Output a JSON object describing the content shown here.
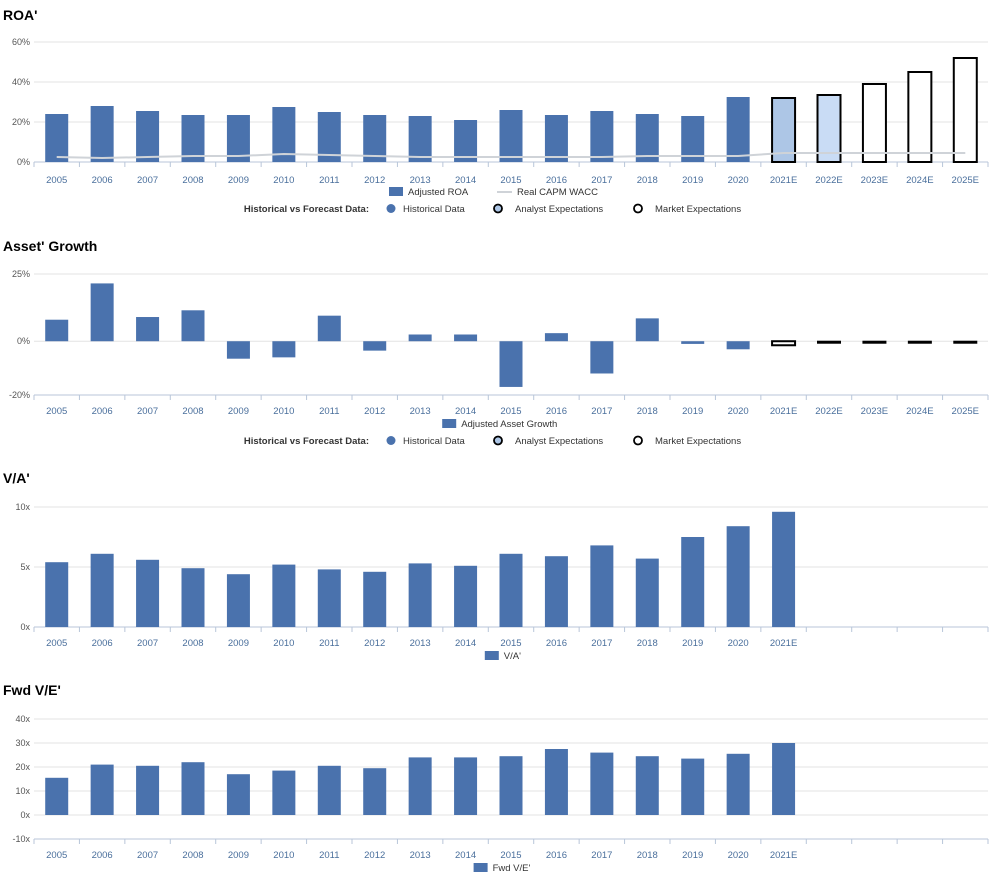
{
  "colors": {
    "historical": "#4a72ad",
    "analyst": "#adc6e6",
    "analyst_light": "#c9dcf5",
    "market_fill": "#ffffff",
    "market_stroke": "#000000",
    "wacc_line": "#cfd3d8",
    "grid": "#e3e3e3",
    "axis": "#b8c6d9"
  },
  "chart_data": [
    {
      "type": "bar",
      "title": "ROA'",
      "categories": [
        "2005",
        "2006",
        "2007",
        "2008",
        "2009",
        "2010",
        "2011",
        "2012",
        "2013",
        "2014",
        "2015",
        "2016",
        "2017",
        "2018",
        "2019",
        "2020",
        "2021E",
        "2022E",
        "2023E",
        "2024E",
        "2025E"
      ],
      "series": [
        {
          "name": "Adjusted ROA",
          "values": [
            24,
            28,
            25.5,
            23.5,
            23.5,
            27.5,
            25,
            23.5,
            23,
            21,
            26,
            23.5,
            25.5,
            24,
            23,
            32.5,
            32,
            33.5,
            39,
            45,
            52
          ],
          "kinds": [
            "h",
            "h",
            "h",
            "h",
            "h",
            "h",
            "h",
            "h",
            "h",
            "h",
            "h",
            "h",
            "h",
            "h",
            "h",
            "h",
            "a",
            "a",
            "m",
            "m",
            "m"
          ]
        },
        {
          "name": "Real CAPM WACC",
          "type": "line",
          "values": [
            2.5,
            2,
            2.5,
            3,
            3,
            4,
            3.5,
            3,
            2.5,
            2.5,
            2.5,
            2.5,
            2.5,
            3,
            3,
            3,
            4.5,
            4.5,
            4.5,
            4.5,
            4.5
          ]
        }
      ],
      "y_ticks": [
        "0%",
        "20%",
        "40%",
        "60%"
      ],
      "ylim": [
        0,
        60
      ],
      "legend_items": [
        "Adjusted ROA",
        "Real CAPM WACC"
      ],
      "legend2_label": "Historical vs Forecast Data:",
      "legend2_items": [
        "Historical Data",
        "Analyst Expectations",
        "Market Expectations"
      ]
    },
    {
      "type": "bar",
      "title": "Asset' Growth",
      "categories": [
        "2005",
        "2006",
        "2007",
        "2008",
        "2009",
        "2010",
        "2011",
        "2012",
        "2013",
        "2014",
        "2015",
        "2016",
        "2017",
        "2018",
        "2019",
        "2020",
        "2021E",
        "2022E",
        "2023E",
        "2024E",
        "2025E"
      ],
      "series": [
        {
          "name": "Adjusted Asset Growth",
          "values": [
            8,
            21.5,
            9,
            11.5,
            -6.5,
            -6,
            9.5,
            -3.5,
            2.5,
            2.5,
            -17,
            3,
            -12,
            8.5,
            -1,
            -3,
            -1.5,
            -1,
            -1,
            -1,
            -1
          ],
          "kinds": [
            "h",
            "h",
            "h",
            "h",
            "h",
            "h",
            "h",
            "h",
            "h",
            "h",
            "h",
            "h",
            "h",
            "h",
            "h",
            "h",
            "m",
            "m",
            "m",
            "m",
            "m"
          ]
        }
      ],
      "y_ticks": [
        "-20%",
        "0%",
        "25%"
      ],
      "ylim": [
        -20,
        25
      ],
      "legend_items": [
        "Adjusted Asset Growth"
      ],
      "legend2_label": "Historical vs Forecast Data:",
      "legend2_items": [
        "Historical Data",
        "Analyst Expectations",
        "Market Expectations"
      ]
    },
    {
      "type": "bar",
      "title": "V/A'",
      "categories": [
        "2005",
        "2006",
        "2007",
        "2008",
        "2009",
        "2010",
        "2011",
        "2012",
        "2013",
        "2014",
        "2015",
        "2016",
        "2017",
        "2018",
        "2019",
        "2020",
        "2021E"
      ],
      "series": [
        {
          "name": "V/A'",
          "values": [
            5.4,
            6.1,
            5.6,
            4.9,
            4.4,
            5.2,
            4.8,
            4.6,
            5.3,
            5.1,
            6.1,
            5.9,
            6.8,
            5.7,
            7.5,
            8.4,
            9.6
          ]
        }
      ],
      "y_ticks": [
        "0x",
        "5x",
        "10x"
      ],
      "ylim": [
        0,
        10
      ],
      "legend_items": [
        "V/A'"
      ]
    },
    {
      "type": "bar",
      "title": "Fwd V/E'",
      "categories": [
        "2005",
        "2006",
        "2007",
        "2008",
        "2009",
        "2010",
        "2011",
        "2012",
        "2013",
        "2014",
        "2015",
        "2016",
        "2017",
        "2018",
        "2019",
        "2020",
        "2021E"
      ],
      "series": [
        {
          "name": "Fwd V/E'",
          "values": [
            15.5,
            21,
            20.5,
            22,
            17,
            18.5,
            20.5,
            19.5,
            24,
            24,
            24.5,
            27.5,
            26,
            24.5,
            23.5,
            25.5,
            30
          ]
        }
      ],
      "y_ticks": [
        "-10x",
        "0x",
        "10x",
        "20x",
        "30x",
        "40x"
      ],
      "ylim": [
        -10,
        40
      ],
      "legend_items": [
        "Fwd V/E'"
      ]
    }
  ]
}
